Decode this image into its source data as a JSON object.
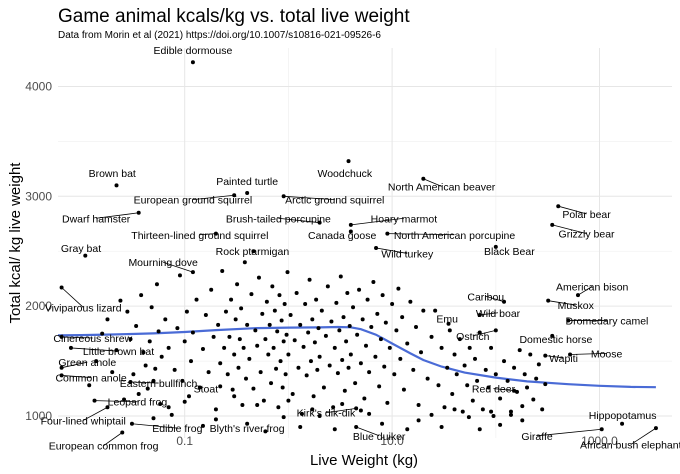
{
  "chart_data": {
    "type": "scatter",
    "title": "Game animal kcals/kg vs. total live weight",
    "subtitle": "Data from Morin et al (2021) https://doi.org/10.1007/s10816-021-09526-6",
    "xlabel": "Live Weight (kg)",
    "ylabel": "Total kcal/ kg live weight",
    "x_scale": "log10",
    "xlim": [
      0.006,
      5000
    ],
    "ylim": [
      800,
      4350
    ],
    "x_ticks": [
      0.1,
      10.0,
      1000.0
    ],
    "x_tick_labels": [
      "0.1",
      "10.0",
      "1000.0"
    ],
    "y_ticks": [
      1000,
      2000,
      3000,
      4000
    ],
    "y_tick_labels": [
      "1000",
      "2000",
      "3000",
      "4000"
    ],
    "grid": true,
    "legend": "none",
    "point_color": "#000000",
    "trend_color": "#4a6bd6",
    "labeled_points": [
      {
        "label": "Edible dormouse",
        "x": 0.12,
        "y": 4220,
        "lx": 0.12,
        "ly": 4330
      },
      {
        "label": "Woodchuck",
        "x": 3.8,
        "y": 3320,
        "lx": 3.5,
        "ly": 3210
      },
      {
        "label": "Brown bat",
        "x": 0.022,
        "y": 3100,
        "lx": 0.02,
        "ly": 3210
      },
      {
        "label": "Painted turtle",
        "x": 0.4,
        "y": 3030,
        "lx": 0.4,
        "ly": 3140
      },
      {
        "label": "North American beaver",
        "x": 20,
        "y": 3160,
        "lx": 30,
        "ly": 3090
      },
      {
        "label": "European ground squirrel",
        "x": 0.3,
        "y": 3010,
        "lx": 0.12,
        "ly": 2970
      },
      {
        "label": "Arctic ground squirrel",
        "x": 0.9,
        "y": 3000,
        "lx": 2.8,
        "ly": 2970
      },
      {
        "label": "Polar bear",
        "x": 400,
        "y": 2910,
        "lx": 750,
        "ly": 2840
      },
      {
        "label": "Dwarf hamster",
        "x": 0.036,
        "y": 2850,
        "lx": 0.014,
        "ly": 2800
      },
      {
        "label": "Brush-tailed porcupine",
        "x": 2.0,
        "y": 2760,
        "lx": 0.8,
        "ly": 2800
      },
      {
        "label": "Hoary marmot",
        "x": 4.0,
        "y": 2740,
        "lx": 13,
        "ly": 2800
      },
      {
        "label": "Thirteen-lined ground squirrel",
        "x": 0.2,
        "y": 2660,
        "lx": 0.14,
        "ly": 2650
      },
      {
        "label": "Canada goose",
        "x": 4.0,
        "y": 2680,
        "lx": 3.3,
        "ly": 2650
      },
      {
        "label": "North American porcupine",
        "x": 9,
        "y": 2660,
        "lx": 40,
        "ly": 2650
      },
      {
        "label": "Grizzly bear",
        "x": 350,
        "y": 2740,
        "lx": 750,
        "ly": 2660
      },
      {
        "label": "Gray bat",
        "x": 0.011,
        "y": 2460,
        "lx": 0.01,
        "ly": 2530
      },
      {
        "label": "Rock ptarmigan",
        "x": 0.46,
        "y": 2500,
        "lx": 0.45,
        "ly": 2500
      },
      {
        "label": "Wild turkey",
        "x": 7,
        "y": 2530,
        "lx": 14,
        "ly": 2480
      },
      {
        "label": "Black Bear",
        "x": 100,
        "y": 2540,
        "lx": 135,
        "ly": 2500
      },
      {
        "label": "Mourning dove",
        "x": 0.12,
        "y": 2310,
        "lx": 0.062,
        "ly": 2400
      },
      {
        "label": "American bison",
        "x": 620,
        "y": 2100,
        "lx": 850,
        "ly": 2180
      },
      {
        "label": "Caribou",
        "x": 120,
        "y": 2040,
        "lx": 80,
        "ly": 2090
      },
      {
        "label": "Viviparous lizard",
        "x": 0.0065,
        "y": 2170,
        "lx": 0.0105,
        "ly": 1990
      },
      {
        "label": "Muskox",
        "x": 320,
        "y": 2050,
        "lx": 590,
        "ly": 2010
      },
      {
        "label": "Wild boar",
        "x": 70,
        "y": 1920,
        "lx": 105,
        "ly": 1940
      },
      {
        "label": "Emu",
        "x": 35,
        "y": 1840,
        "lx": 34,
        "ly": 1890
      },
      {
        "label": "Dromedary camel",
        "x": 500,
        "y": 1870,
        "lx": 1180,
        "ly": 1870
      },
      {
        "label": "Ostrich",
        "x": 100,
        "y": 1780,
        "lx": 60,
        "ly": 1730
      },
      {
        "label": "Cinereous shrew",
        "x": 0.0065,
        "y": 1720,
        "lx": 0.013,
        "ly": 1710
      },
      {
        "label": "Domestic horse",
        "x": 350,
        "y": 1730,
        "lx": 380,
        "ly": 1700
      },
      {
        "label": "Little brown bat",
        "x": 0.008,
        "y": 1620,
        "lx": 0.023,
        "ly": 1590
      },
      {
        "label": "Moose",
        "x": 520,
        "y": 1560,
        "lx": 1170,
        "ly": 1570
      },
      {
        "label": "Wapiti",
        "x": 300,
        "y": 1550,
        "lx": 450,
        "ly": 1530
      },
      {
        "label": "Green anole",
        "x": 0.0065,
        "y": 1440,
        "lx": 0.0115,
        "ly": 1490
      },
      {
        "label": "Common anole",
        "x": 0.0065,
        "y": 1370,
        "lx": 0.0125,
        "ly": 1350
      },
      {
        "label": "Eastern bullfinch",
        "x": 0.03,
        "y": 1310,
        "lx": 0.056,
        "ly": 1300
      },
      {
        "label": "Stoat",
        "x": 0.22,
        "y": 1270,
        "lx": 0.16,
        "ly": 1250
      },
      {
        "label": "Red deer",
        "x": 150,
        "y": 1230,
        "lx": 95,
        "ly": 1250
      },
      {
        "label": "Leopard frog",
        "x": 0.0135,
        "y": 1140,
        "lx": 0.035,
        "ly": 1130
      },
      {
        "label": "Kirk's dik-dik",
        "x": 4.5,
        "y": 1070,
        "lx": 2.3,
        "ly": 1030
      },
      {
        "label": "Four-lined whiptail",
        "x": 0.018,
        "y": 1080,
        "lx": 0.0105,
        "ly": 960
      },
      {
        "label": "Hippopotamus",
        "x": 1650,
        "y": 930,
        "lx": 1670,
        "ly": 1010
      },
      {
        "label": "Edible frog",
        "x": 0.031,
        "y": 930,
        "lx": 0.085,
        "ly": 890
      },
      {
        "label": "Blyth's river frog",
        "x": 0.4,
        "y": 930,
        "lx": 0.4,
        "ly": 890
      },
      {
        "label": "Blue duiker",
        "x": 4.5,
        "y": 900,
        "lx": 7.5,
        "ly": 820
      },
      {
        "label": "Giraffe",
        "x": 1050,
        "y": 880,
        "lx": 250,
        "ly": 820
      },
      {
        "label": "African bush elephant",
        "x": 3500,
        "y": 890,
        "lx": 2000,
        "ly": 740
      },
      {
        "label": "European common frog",
        "x": 0.025,
        "y": 850,
        "lx": 0.0165,
        "ly": 730
      }
    ],
    "other_points": [
      [
        0.012,
        1280
      ],
      [
        0.014,
        1500
      ],
      [
        0.016,
        1750
      ],
      [
        0.018,
        1880
      ],
      [
        0.02,
        1400
      ],
      [
        0.022,
        1600
      ],
      [
        0.024,
        2050
      ],
      [
        0.026,
        1150
      ],
      [
        0.028,
        1950
      ],
      [
        0.03,
        1700
      ],
      [
        0.032,
        1380
      ],
      [
        0.034,
        1820
      ],
      [
        0.036,
        1200
      ],
      [
        0.038,
        2100
      ],
      [
        0.04,
        1580
      ],
      [
        0.042,
        1460
      ],
      [
        0.044,
        1250
      ],
      [
        0.046,
        1680
      ],
      [
        0.048,
        1990
      ],
      [
        0.05,
        1320
      ],
      [
        0.052,
        1430
      ],
      [
        0.054,
        2200
      ],
      [
        0.056,
        1770
      ],
      [
        0.058,
        1110
      ],
      [
        0.06,
        1540
      ],
      [
        0.065,
        1880
      ],
      [
        0.07,
        1620
      ],
      [
        0.075,
        1010
      ],
      [
        0.08,
        1420
      ],
      [
        0.085,
        1800
      ],
      [
        0.09,
        2280
      ],
      [
        0.095,
        1320
      ],
      [
        0.1,
        1680
      ],
      [
        0.105,
        1950
      ],
      [
        0.11,
        1180
      ],
      [
        0.115,
        1500
      ],
      [
        0.12,
        1760
      ],
      [
        0.13,
        2060
      ],
      [
        0.14,
        1260
      ],
      [
        0.15,
        1610
      ],
      [
        0.16,
        1920
      ],
      [
        0.17,
        1400
      ],
      [
        0.18,
        2150
      ],
      [
        0.19,
        1720
      ],
      [
        0.2,
        1060
      ],
      [
        0.21,
        1830
      ],
      [
        0.22,
        1480
      ],
      [
        0.23,
        2320
      ],
      [
        0.24,
        1620
      ],
      [
        0.25,
        1950
      ],
      [
        0.26,
        1380
      ],
      [
        0.27,
        1720
      ],
      [
        0.28,
        2060
      ],
      [
        0.29,
        1240
      ],
      [
        0.3,
        1560
      ],
      [
        0.31,
        1880
      ],
      [
        0.32,
        2200
      ],
      [
        0.33,
        1440
      ],
      [
        0.34,
        1700
      ],
      [
        0.35,
        1980
      ],
      [
        0.36,
        1100
      ],
      [
        0.37,
        1620
      ],
      [
        0.38,
        2400
      ],
      [
        0.39,
        1340
      ],
      [
        0.4,
        1830
      ],
      [
        0.42,
        1520
      ],
      [
        0.44,
        2110
      ],
      [
        0.46,
        1250
      ],
      [
        0.48,
        1780
      ],
      [
        0.5,
        1640
      ],
      [
        0.52,
        2260
      ],
      [
        0.54,
        1400
      ],
      [
        0.56,
        1930
      ],
      [
        0.58,
        1140
      ],
      [
        0.6,
        1700
      ],
      [
        0.62,
        2040
      ],
      [
        0.64,
        1560
      ],
      [
        0.66,
        1830
      ],
      [
        0.68,
        1300
      ],
      [
        0.7,
        2180
      ],
      [
        0.72,
        1620
      ],
      [
        0.74,
        1960
      ],
      [
        0.76,
        1430
      ],
      [
        0.78,
        1770
      ],
      [
        0.8,
        1080
      ],
      [
        0.82,
        2100
      ],
      [
        0.84,
        1500
      ],
      [
        0.86,
        1870
      ],
      [
        0.88,
        1260
      ],
      [
        0.9,
        1680
      ],
      [
        0.92,
        2020
      ],
      [
        0.94,
        1380
      ],
      [
        0.96,
        1740
      ],
      [
        0.98,
        2310
      ],
      [
        1.0,
        1560
      ],
      [
        1.05,
        1920
      ],
      [
        1.1,
        1200
      ],
      [
        1.15,
        1690
      ],
      [
        1.2,
        2120
      ],
      [
        1.25,
        1440
      ],
      [
        1.3,
        1830
      ],
      [
        1.35,
        1020
      ],
      [
        1.4,
        1630
      ],
      [
        1.45,
        2020
      ],
      [
        1.5,
        1370
      ],
      [
        1.55,
        1760
      ],
      [
        1.6,
        2240
      ],
      [
        1.65,
        1500
      ],
      [
        1.7,
        1880
      ],
      [
        1.75,
        1180
      ],
      [
        1.8,
        1670
      ],
      [
        1.85,
        2060
      ],
      [
        1.9,
        1420
      ],
      [
        1.95,
        1800
      ],
      [
        2.0,
        1540
      ],
      [
        2.1,
        1960
      ],
      [
        2.2,
        1260
      ],
      [
        2.3,
        1730
      ],
      [
        2.4,
        2180
      ],
      [
        2.5,
        1460
      ],
      [
        2.6,
        1860
      ],
      [
        2.7,
        1080
      ],
      [
        2.8,
        1620
      ],
      [
        2.9,
        2030
      ],
      [
        3.0,
        1390
      ],
      [
        3.1,
        1780
      ],
      [
        3.2,
        2270
      ],
      [
        3.3,
        1510
      ],
      [
        3.4,
        1900
      ],
      [
        3.5,
        1230
      ],
      [
        3.6,
        1680
      ],
      [
        3.7,
        2120
      ],
      [
        3.8,
        1440
      ],
      [
        3.9,
        1820
      ],
      [
        4.0,
        1560
      ],
      [
        4.2,
        1990
      ],
      [
        4.4,
        1300
      ],
      [
        4.6,
        1740
      ],
      [
        4.8,
        2150
      ],
      [
        5.0,
        1480
      ],
      [
        5.2,
        1880
      ],
      [
        5.4,
        1160
      ],
      [
        5.6,
        1640
      ],
      [
        5.8,
        2060
      ],
      [
        6.0,
        1400
      ],
      [
        6.3,
        1810
      ],
      [
        6.6,
        2220
      ],
      [
        6.9,
        1540
      ],
      [
        7.2,
        1930
      ],
      [
        7.5,
        1270
      ],
      [
        7.8,
        1700
      ],
      [
        8.1,
        2100
      ],
      [
        8.4,
        1450
      ],
      [
        8.7,
        1850
      ],
      [
        9.0,
        1120
      ],
      [
        9.5,
        1620
      ],
      [
        10,
        2020
      ],
      [
        10.5,
        1380
      ],
      [
        11,
        1780
      ],
      [
        11.5,
        2160
      ],
      [
        12,
        1520
      ],
      [
        12.5,
        1900
      ],
      [
        13,
        1240
      ],
      [
        14,
        1660
      ],
      [
        15,
        2040
      ],
      [
        16,
        1420
      ],
      [
        17,
        1810
      ],
      [
        18,
        1100
      ],
      [
        19,
        1580
      ],
      [
        20,
        1960
      ],
      [
        22,
        1340
      ],
      [
        24,
        1720
      ],
      [
        26,
        1960
      ],
      [
        28,
        1280
      ],
      [
        30,
        1620
      ],
      [
        32,
        1080
      ],
      [
        34,
        1440
      ],
      [
        36,
        1780
      ],
      [
        38,
        1200
      ],
      [
        40,
        1560
      ],
      [
        42,
        1380
      ],
      [
        45,
        1700
      ],
      [
        48,
        1040
      ],
      [
        50,
        1460
      ],
      [
        53,
        1280
      ],
      [
        56,
        1620
      ],
      [
        60,
        1140
      ],
      [
        63,
        1520
      ],
      [
        66,
        1320
      ],
      [
        70,
        1760
      ],
      [
        75,
        1060
      ],
      [
        80,
        1420
      ],
      [
        85,
        1260
      ],
      [
        90,
        1620
      ],
      [
        95,
        1000
      ],
      [
        100,
        1380
      ],
      [
        110,
        1160
      ],
      [
        120,
        1500
      ],
      [
        130,
        1320
      ],
      [
        140,
        1040
      ],
      [
        150,
        1440
      ],
      [
        160,
        1220
      ],
      [
        170,
        1600
      ],
      [
        180,
        1090
      ],
      [
        190,
        1380
      ],
      [
        200,
        1260
      ],
      [
        215,
        1560
      ],
      [
        230,
        1150
      ],
      [
        245,
        1340
      ],
      [
        260,
        1470
      ],
      [
        280,
        1060
      ],
      [
        300,
        1290
      ],
      [
        0.15,
        910
      ],
      [
        0.2,
        970
      ],
      [
        0.6,
        860
      ],
      [
        0.9,
        990
      ],
      [
        1.3,
        900
      ],
      [
        2.0,
        1000
      ],
      [
        2.8,
        880
      ],
      [
        6.0,
        1020
      ],
      [
        8.0,
        930
      ],
      [
        14,
        880
      ],
      [
        18,
        960
      ],
      [
        24,
        1010
      ],
      [
        30,
        900
      ],
      [
        40,
        1060
      ],
      [
        55,
        990
      ],
      [
        70,
        880
      ],
      [
        90,
        1040
      ],
      [
        110,
        920
      ],
      [
        140,
        1010
      ],
      [
        180,
        960
      ],
      [
        0.05,
        980
      ],
      [
        0.07,
        1080
      ],
      [
        0.1,
        1130
      ],
      [
        0.3,
        1180
      ],
      [
        0.5,
        1100
      ],
      [
        1.0,
        1140
      ],
      [
        1.7,
        1060
      ],
      [
        3.3,
        1110
      ],
      [
        5.0,
        1050
      ]
    ],
    "trend_line": {
      "x": [
        0.006,
        0.01,
        0.02,
        0.05,
        0.1,
        0.2,
        0.5,
        1,
        2,
        3,
        4,
        5,
        7,
        10,
        15,
        20,
        30,
        50,
        100,
        200,
        500,
        1000,
        2000,
        3500
      ],
      "y": [
        1735,
        1737,
        1742,
        1752,
        1765,
        1782,
        1800,
        1805,
        1807,
        1810,
        1808,
        1790,
        1740,
        1660,
        1570,
        1510,
        1450,
        1395,
        1350,
        1315,
        1290,
        1275,
        1265,
        1262
      ]
    }
  }
}
